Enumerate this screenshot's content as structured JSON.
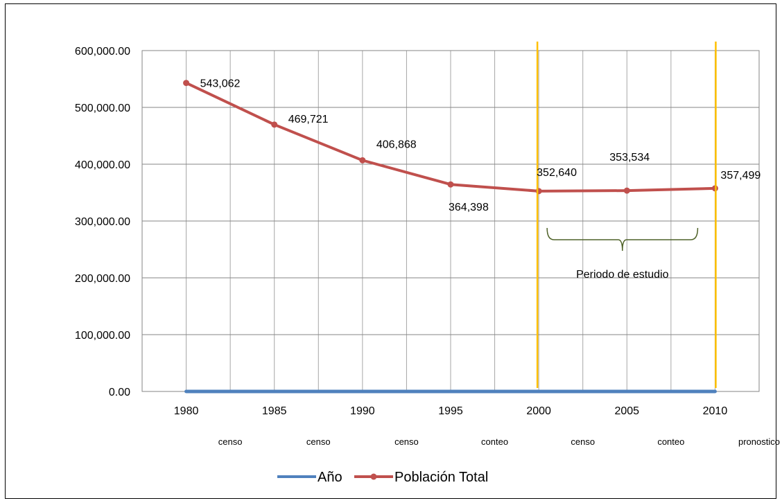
{
  "chart_data": {
    "type": "line",
    "title": "",
    "xlabel": "",
    "ylabel": "",
    "categories": [
      "1980",
      "1985",
      "1990",
      "1995",
      "2000",
      "2005",
      "2010"
    ],
    "category_notes": [
      "censo",
      "censo",
      "censo",
      "conteo",
      "censo",
      "conteo",
      "pronostico"
    ],
    "ylim": [
      0,
      600000
    ],
    "y_ticks": [
      "0.00",
      "100,000.00",
      "200,000.00",
      "300,000.00",
      "400,000.00",
      "500,000.00",
      "600,000.00"
    ],
    "grid": true,
    "legend_position": "bottom",
    "series": [
      {
        "name": "Año",
        "values": [
          0,
          0,
          0,
          0,
          0,
          0,
          0
        ],
        "color": "#4f81bd",
        "marker": false
      },
      {
        "name": "Población Total",
        "values": [
          543062,
          469721,
          406868,
          364398,
          352640,
          353534,
          357499
        ],
        "labels": [
          "543,062",
          "469,721",
          "406,868",
          "364,398",
          "352,640",
          "353,534",
          "357,499"
        ],
        "color": "#c0504d",
        "marker": true
      }
    ],
    "reference_lines": {
      "x": [
        "2000",
        "2010"
      ],
      "color": "#ffc000"
    },
    "annotation": {
      "text": "Periodo de estudio",
      "from": "2000",
      "to": "2010",
      "bracket_color": "#4f6228"
    }
  }
}
